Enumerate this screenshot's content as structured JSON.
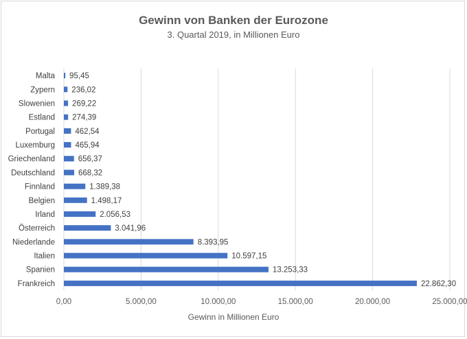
{
  "chart_data": {
    "type": "bar",
    "orientation": "horizontal",
    "title": "Gewinn von Banken der Eurozone",
    "subtitle": "3. Quartal 2019, in Millionen Euro",
    "xlabel": "Gewinn in Millionen Euro",
    "ylabel": "",
    "xlim": [
      0,
      25000
    ],
    "grid": true,
    "legend": "none",
    "bar_color": "#4472c4",
    "categories": [
      "Malta",
      "Zypern",
      "Slowenien",
      "Estland",
      "Portugal",
      "Luxemburg",
      "Griechenland",
      "Deutschland",
      "Finnland",
      "Belgien",
      "Irland",
      "Österreich",
      "Niederlande",
      "Italien",
      "Spanien",
      "Frankreich"
    ],
    "values": [
      95.45,
      236.02,
      269.22,
      274.39,
      462.54,
      465.94,
      656.37,
      668.32,
      1389.38,
      1498.17,
      2056.53,
      3041.96,
      8393.95,
      10597.15,
      13253.33,
      22862.3
    ],
    "value_labels": [
      "95,45",
      "236,02",
      "269,22",
      "274,39",
      "462,54",
      "465,94",
      "656,37",
      "668,32",
      "1.389,38",
      "1.498,17",
      "2.056,53",
      "3.041,96",
      "8.393,95",
      "10.597,15",
      "13.253,33",
      "22.862,30"
    ],
    "ticks": [
      0,
      5000,
      10000,
      15000,
      20000,
      25000
    ],
    "tick_labels": [
      "0,00",
      "5.000,00",
      "10.000,00",
      "15.000,00",
      "20.000,00",
      "25.000,00"
    ]
  }
}
